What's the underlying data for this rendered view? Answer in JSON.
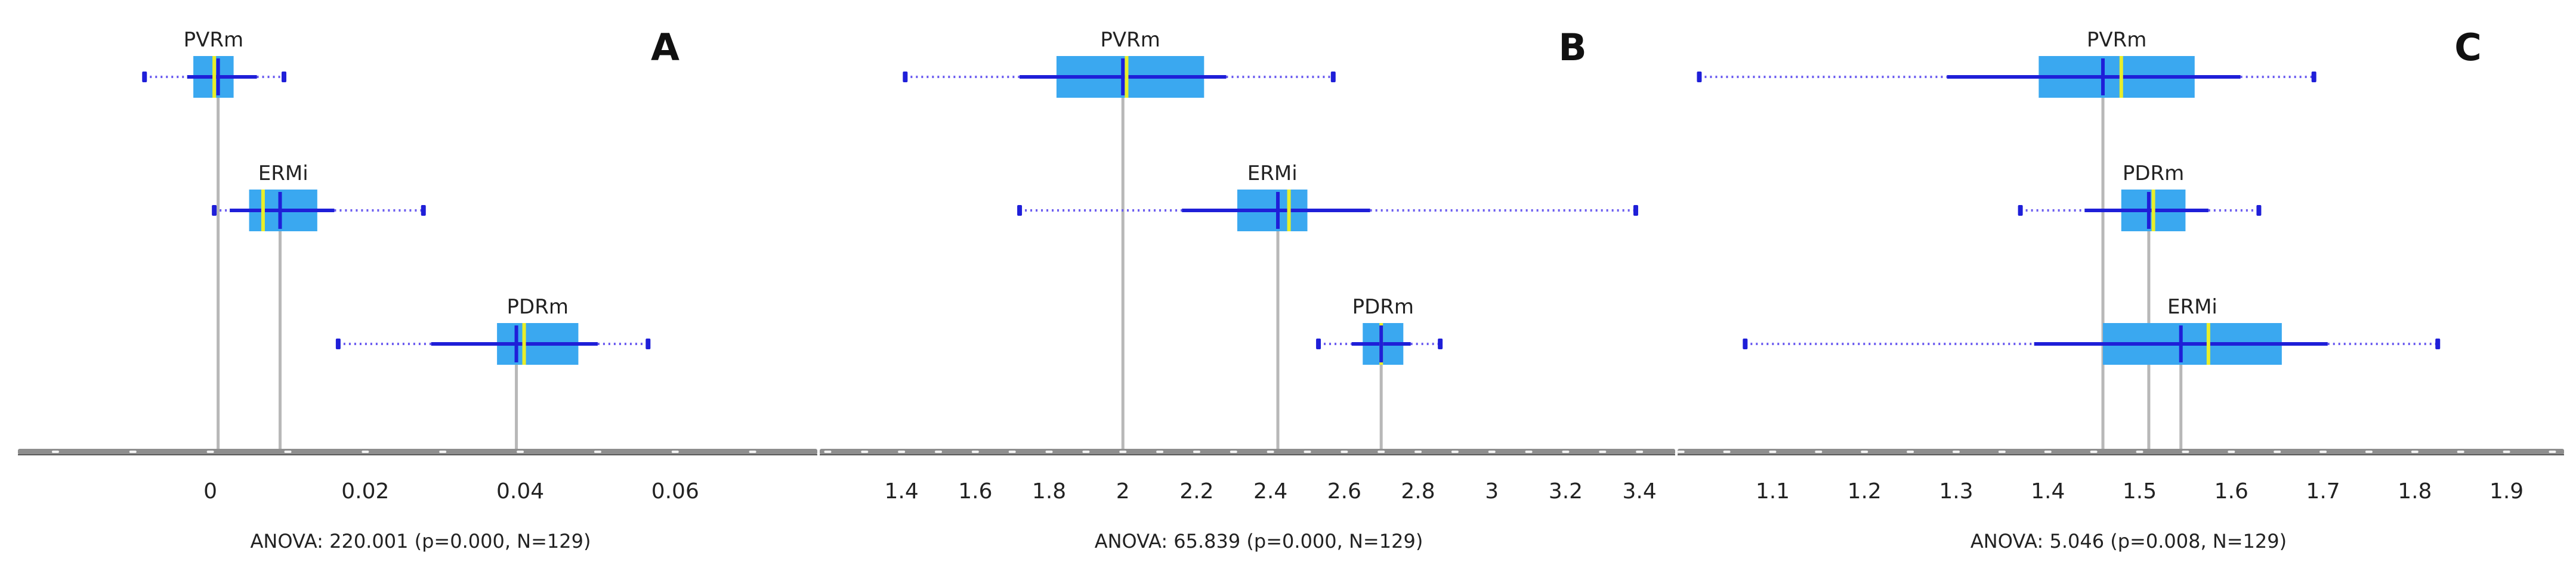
{
  "chart_data": [
    {
      "panel_label": "A",
      "type": "boxplot",
      "xlim": [
        -0.025,
        0.0785
      ],
      "ticks": [
        0,
        0.02,
        0.04,
        0.06
      ],
      "tick_labels": [
        "0",
        "0.02",
        "0.04",
        "0.06"
      ],
      "minor_ticks": [
        -0.02,
        -0.01,
        0,
        0.01,
        0.02,
        0.03,
        0.04,
        0.05,
        0.06,
        0.07
      ],
      "footer": "ANOVA: 220.001 (p=0.000, N=129)",
      "groups": [
        {
          "name": "PVRm",
          "min": -0.0085,
          "whisker_low": -0.003,
          "q1": -0.0022,
          "median": 0.0005,
          "mean": 0.001,
          "q3": 0.003,
          "whisker_high": 0.006,
          "max": 0.0095
        },
        {
          "name": "ERMi",
          "min": 0.0005,
          "whisker_low": 0.0025,
          "q1": 0.005,
          "median": 0.0068,
          "mean": 0.009,
          "q3": 0.0138,
          "whisker_high": 0.016,
          "max": 0.0275
        },
        {
          "name": "PDRm",
          "min": 0.0165,
          "whisker_low": 0.0285,
          "q1": 0.037,
          "median": 0.0405,
          "mean": 0.0395,
          "q3": 0.0475,
          "whisker_high": 0.05,
          "max": 0.0565
        }
      ]
    },
    {
      "panel_label": "B",
      "type": "boxplot",
      "xlim": [
        1.175,
        3.5
      ],
      "ticks": [
        1.4,
        1.6,
        1.8,
        2,
        2.2,
        2.4,
        2.6,
        2.8,
        3,
        3.2,
        3.4
      ],
      "tick_labels": [
        "1.4",
        "1.6",
        "1.8",
        "2",
        "2.2",
        "2.4",
        "2.6",
        "2.8",
        "3",
        "3.2",
        "3.4"
      ],
      "minor_ticks": [
        1.2,
        1.3,
        1.4,
        1.5,
        1.6,
        1.7,
        1.8,
        1.9,
        2,
        2.1,
        2.2,
        2.3,
        2.4,
        2.5,
        2.6,
        2.7,
        2.8,
        2.9,
        3,
        3.1,
        3.2,
        3.3,
        3.4
      ],
      "footer": "ANOVA: 65.839 (p=0.000, N=129)",
      "groups": [
        {
          "name": "PVRm",
          "min": 1.41,
          "whisker_low": 1.72,
          "q1": 1.82,
          "median": 2.01,
          "mean": 2.0,
          "q3": 2.22,
          "whisker_high": 2.28,
          "max": 2.57
        },
        {
          "name": "ERMi",
          "min": 1.72,
          "whisker_low": 2.16,
          "q1": 2.31,
          "median": 2.45,
          "mean": 2.42,
          "q3": 2.5,
          "whisker_high": 2.67,
          "max": 3.39
        },
        {
          "name": "PDRm",
          "min": 2.53,
          "whisker_low": 2.62,
          "q1": 2.65,
          "median": 2.7,
          "mean": 2.7,
          "q3": 2.76,
          "whisker_high": 2.78,
          "max": 2.86
        }
      ]
    },
    {
      "panel_label": "C",
      "type": "boxplot",
      "xlim": [
        0.995,
        1.964
      ],
      "ticks": [
        1.1,
        1.2,
        1.3,
        1.4,
        1.5,
        1.6,
        1.7,
        1.8,
        1.9
      ],
      "tick_labels": [
        "1.1",
        "1.2",
        "1.3",
        "1.4",
        "1.5",
        "1.6",
        "1.7",
        "1.8",
        "1.9"
      ],
      "minor_ticks": [
        1.0,
        1.05,
        1.1,
        1.15,
        1.2,
        1.25,
        1.3,
        1.35,
        1.4,
        1.45,
        1.5,
        1.55,
        1.6,
        1.65,
        1.7,
        1.75,
        1.8,
        1.85,
        1.9,
        1.95
      ],
      "footer": "ANOVA: 5.046 (p=0.008, N=129)",
      "groups": [
        {
          "name": "PVRm",
          "min": 1.02,
          "whisker_low": 1.29,
          "q1": 1.39,
          "median": 1.48,
          "mean": 1.46,
          "q3": 1.56,
          "whisker_high": 1.61,
          "max": 1.69
        },
        {
          "name": "PDRm",
          "min": 1.37,
          "whisker_low": 1.44,
          "q1": 1.48,
          "median": 1.515,
          "mean": 1.51,
          "q3": 1.55,
          "whisker_high": 1.575,
          "max": 1.63
        },
        {
          "name": "ERMi",
          "min": 1.07,
          "whisker_low": 1.385,
          "q1": 1.46,
          "median": 1.575,
          "mean": 1.545,
          "q3": 1.655,
          "whisker_high": 1.705,
          "max": 1.825
        }
      ]
    }
  ],
  "colors": {
    "box": "#3aa8f0",
    "mean_line": "#1f1fd8",
    "median_line": "#e8ee2a",
    "whisker": "#1f1fd8",
    "dotted": "#6b5cf0",
    "drop_line": "#b8b8b8",
    "axis": "#8e8e8e",
    "axis_dark": "#5a5a5a",
    "text": "#222222"
  }
}
